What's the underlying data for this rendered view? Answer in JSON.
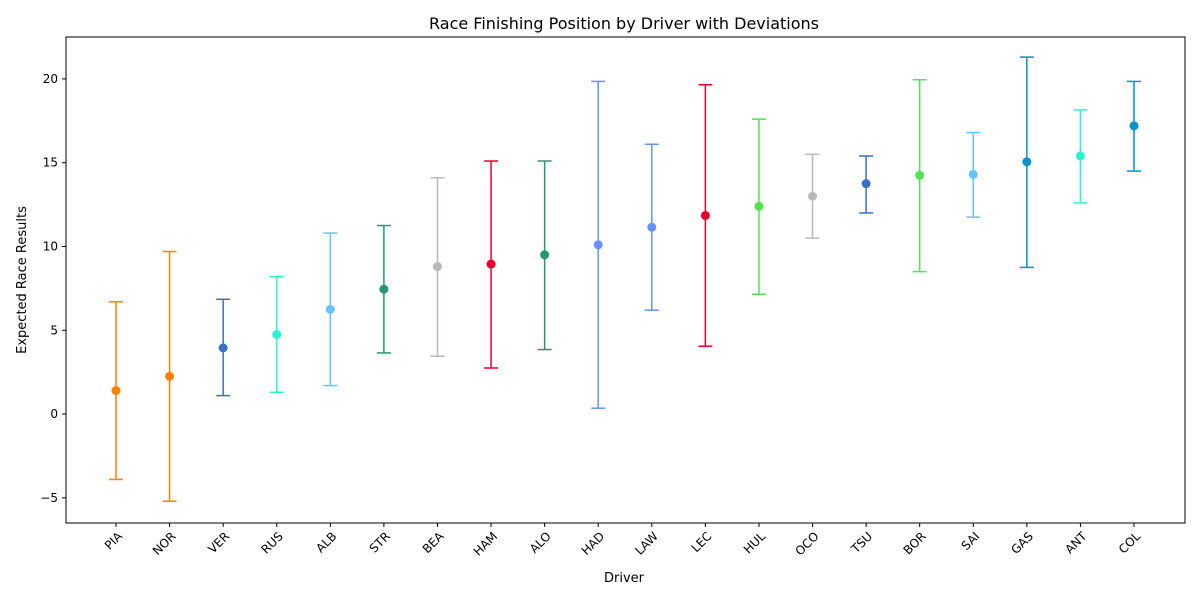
{
  "chart_data": {
    "type": "scatter",
    "title": "Race Finishing Position by Driver with Deviations",
    "xlabel": "Driver",
    "ylabel": "Expected Race Results",
    "ylim": [
      -6.5,
      22.5
    ],
    "yticks": [
      -5,
      0,
      5,
      10,
      15,
      20
    ],
    "ytick_labels": [
      "−5",
      "0",
      "5",
      "10",
      "15",
      "20"
    ],
    "grid": false,
    "legend": "none",
    "categories": [
      "PIA",
      "NOR",
      "VER",
      "RUS",
      "ALB",
      "STR",
      "BEA",
      "HAM",
      "ALO",
      "HAD",
      "LAW",
      "LEC",
      "HUL",
      "OCO",
      "TSU",
      "BOR",
      "SAI",
      "GAS",
      "ANT",
      "COL"
    ],
    "values": [
      1.4,
      2.25,
      3.95,
      4.75,
      6.25,
      7.45,
      8.8,
      8.95,
      9.5,
      10.1,
      11.15,
      11.85,
      12.4,
      13.0,
      13.75,
      14.25,
      14.3,
      15.05,
      15.4,
      17.2
    ],
    "lower": [
      -3.9,
      -5.2,
      1.1,
      1.3,
      1.7,
      3.65,
      3.45,
      2.75,
      3.85,
      0.35,
      6.2,
      4.05,
      7.15,
      10.5,
      12.0,
      8.5,
      11.75,
      8.75,
      12.6,
      14.5
    ],
    "upper": [
      6.7,
      9.7,
      6.85,
      8.2,
      10.8,
      11.25,
      14.1,
      15.1,
      15.1,
      19.85,
      16.1,
      19.65,
      17.6,
      15.5,
      15.4,
      19.95,
      16.8,
      21.3,
      18.15,
      19.85
    ],
    "colors": [
      "#FF8000",
      "#FF8000",
      "#3671C6",
      "#27F4D2",
      "#64C4FF",
      "#229971",
      "#B6BABD",
      "#E8002D",
      "#229971",
      "#6692FF",
      "#6692FF",
      "#E8002D",
      "#52E252",
      "#B6BABD",
      "#3671C6",
      "#52E252",
      "#64C4FF",
      "#0093CC",
      "#27F4D2",
      "#0093CC"
    ]
  }
}
